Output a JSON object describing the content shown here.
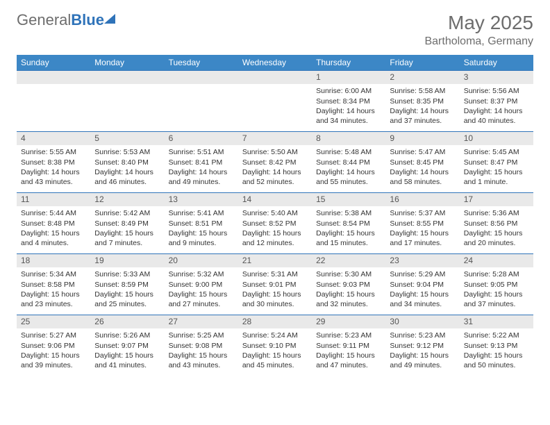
{
  "brand": {
    "part1": "General",
    "part2": "Blue"
  },
  "header": {
    "month_title": "May 2025",
    "location": "Bartholoma, Germany"
  },
  "weekdays": [
    "Sunday",
    "Monday",
    "Tuesday",
    "Wednesday",
    "Thursday",
    "Friday",
    "Saturday"
  ],
  "colors": {
    "header_bg": "#3c87c6",
    "border": "#2f73b9",
    "daynum_bg": "#e9e9e9",
    "text_muted": "#6d6d6d"
  },
  "grid": [
    [
      {
        "blank": true
      },
      {
        "blank": true
      },
      {
        "blank": true
      },
      {
        "blank": true
      },
      {
        "n": "1",
        "sr": "6:00 AM",
        "ss": "8:34 PM",
        "dl": "14 hours and 34 minutes."
      },
      {
        "n": "2",
        "sr": "5:58 AM",
        "ss": "8:35 PM",
        "dl": "14 hours and 37 minutes."
      },
      {
        "n": "3",
        "sr": "5:56 AM",
        "ss": "8:37 PM",
        "dl": "14 hours and 40 minutes."
      }
    ],
    [
      {
        "n": "4",
        "sr": "5:55 AM",
        "ss": "8:38 PM",
        "dl": "14 hours and 43 minutes."
      },
      {
        "n": "5",
        "sr": "5:53 AM",
        "ss": "8:40 PM",
        "dl": "14 hours and 46 minutes."
      },
      {
        "n": "6",
        "sr": "5:51 AM",
        "ss": "8:41 PM",
        "dl": "14 hours and 49 minutes."
      },
      {
        "n": "7",
        "sr": "5:50 AM",
        "ss": "8:42 PM",
        "dl": "14 hours and 52 minutes."
      },
      {
        "n": "8",
        "sr": "5:48 AM",
        "ss": "8:44 PM",
        "dl": "14 hours and 55 minutes."
      },
      {
        "n": "9",
        "sr": "5:47 AM",
        "ss": "8:45 PM",
        "dl": "14 hours and 58 minutes."
      },
      {
        "n": "10",
        "sr": "5:45 AM",
        "ss": "8:47 PM",
        "dl": "15 hours and 1 minute."
      }
    ],
    [
      {
        "n": "11",
        "sr": "5:44 AM",
        "ss": "8:48 PM",
        "dl": "15 hours and 4 minutes."
      },
      {
        "n": "12",
        "sr": "5:42 AM",
        "ss": "8:49 PM",
        "dl": "15 hours and 7 minutes."
      },
      {
        "n": "13",
        "sr": "5:41 AM",
        "ss": "8:51 PM",
        "dl": "15 hours and 9 minutes."
      },
      {
        "n": "14",
        "sr": "5:40 AM",
        "ss": "8:52 PM",
        "dl": "15 hours and 12 minutes."
      },
      {
        "n": "15",
        "sr": "5:38 AM",
        "ss": "8:54 PM",
        "dl": "15 hours and 15 minutes."
      },
      {
        "n": "16",
        "sr": "5:37 AM",
        "ss": "8:55 PM",
        "dl": "15 hours and 17 minutes."
      },
      {
        "n": "17",
        "sr": "5:36 AM",
        "ss": "8:56 PM",
        "dl": "15 hours and 20 minutes."
      }
    ],
    [
      {
        "n": "18",
        "sr": "5:34 AM",
        "ss": "8:58 PM",
        "dl": "15 hours and 23 minutes."
      },
      {
        "n": "19",
        "sr": "5:33 AM",
        "ss": "8:59 PM",
        "dl": "15 hours and 25 minutes."
      },
      {
        "n": "20",
        "sr": "5:32 AM",
        "ss": "9:00 PM",
        "dl": "15 hours and 27 minutes."
      },
      {
        "n": "21",
        "sr": "5:31 AM",
        "ss": "9:01 PM",
        "dl": "15 hours and 30 minutes."
      },
      {
        "n": "22",
        "sr": "5:30 AM",
        "ss": "9:03 PM",
        "dl": "15 hours and 32 minutes."
      },
      {
        "n": "23",
        "sr": "5:29 AM",
        "ss": "9:04 PM",
        "dl": "15 hours and 34 minutes."
      },
      {
        "n": "24",
        "sr": "5:28 AM",
        "ss": "9:05 PM",
        "dl": "15 hours and 37 minutes."
      }
    ],
    [
      {
        "n": "25",
        "sr": "5:27 AM",
        "ss": "9:06 PM",
        "dl": "15 hours and 39 minutes."
      },
      {
        "n": "26",
        "sr": "5:26 AM",
        "ss": "9:07 PM",
        "dl": "15 hours and 41 minutes."
      },
      {
        "n": "27",
        "sr": "5:25 AM",
        "ss": "9:08 PM",
        "dl": "15 hours and 43 minutes."
      },
      {
        "n": "28",
        "sr": "5:24 AM",
        "ss": "9:10 PM",
        "dl": "15 hours and 45 minutes."
      },
      {
        "n": "29",
        "sr": "5:23 AM",
        "ss": "9:11 PM",
        "dl": "15 hours and 47 minutes."
      },
      {
        "n": "30",
        "sr": "5:23 AM",
        "ss": "9:12 PM",
        "dl": "15 hours and 49 minutes."
      },
      {
        "n": "31",
        "sr": "5:22 AM",
        "ss": "9:13 PM",
        "dl": "15 hours and 50 minutes."
      }
    ]
  ],
  "labels": {
    "sunrise": "Sunrise: ",
    "sunset": "Sunset: ",
    "daylight": "Daylight: "
  }
}
